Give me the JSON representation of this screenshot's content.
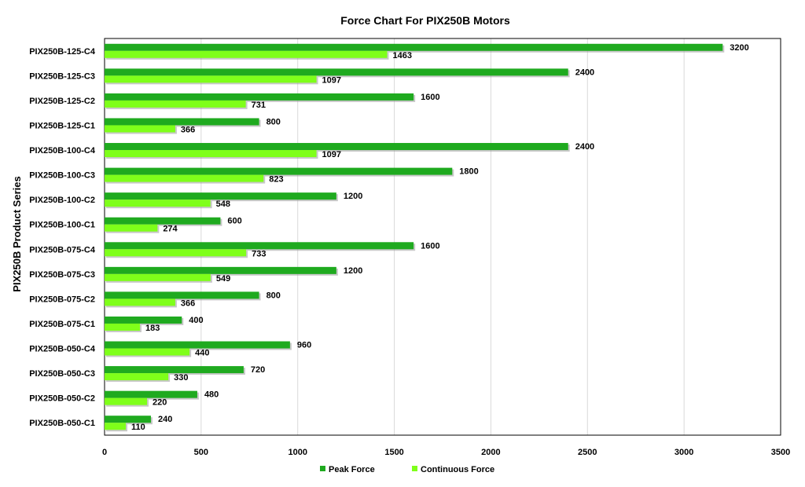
{
  "chart_data": {
    "type": "bar",
    "orientation": "horizontal",
    "title": "Force Chart For PIX250B Motors",
    "xlabel": "",
    "ylabel": "PIX250B Product Series",
    "xlim": [
      0,
      3500
    ],
    "xticks": [
      0,
      500,
      1000,
      1500,
      2000,
      2500,
      3000,
      3500
    ],
    "grid": true,
    "legend_position": "bottom",
    "categories": [
      "PIX250B-125-C4",
      "PIX250B-125-C3",
      "PIX250B-125-C2",
      "PIX250B-125-C1",
      "PIX250B-100-C4",
      "PIX250B-100-C3",
      "PIX250B-100-C2",
      "PIX250B-100-C1",
      "PIX250B-075-C4",
      "PIX250B-075-C3",
      "PIX250B-075-C2",
      "PIX250B-075-C1",
      "PIX250B-050-C4",
      "PIX250B-050-C3",
      "PIX250B-050-C2",
      "PIX250B-050-C1"
    ],
    "series": [
      {
        "name": "Peak Force",
        "color": "#1faa1f",
        "values": [
          3200,
          2400,
          1600,
          800,
          2400,
          1800,
          1200,
          600,
          1600,
          1200,
          800,
          400,
          960,
          720,
          480,
          240
        ]
      },
      {
        "name": "Continuous Force",
        "color": "#7fff1a",
        "values": [
          1463,
          1097,
          731,
          366,
          1097,
          823,
          548,
          274,
          733,
          549,
          366,
          183,
          440,
          330,
          220,
          110
        ]
      }
    ]
  }
}
